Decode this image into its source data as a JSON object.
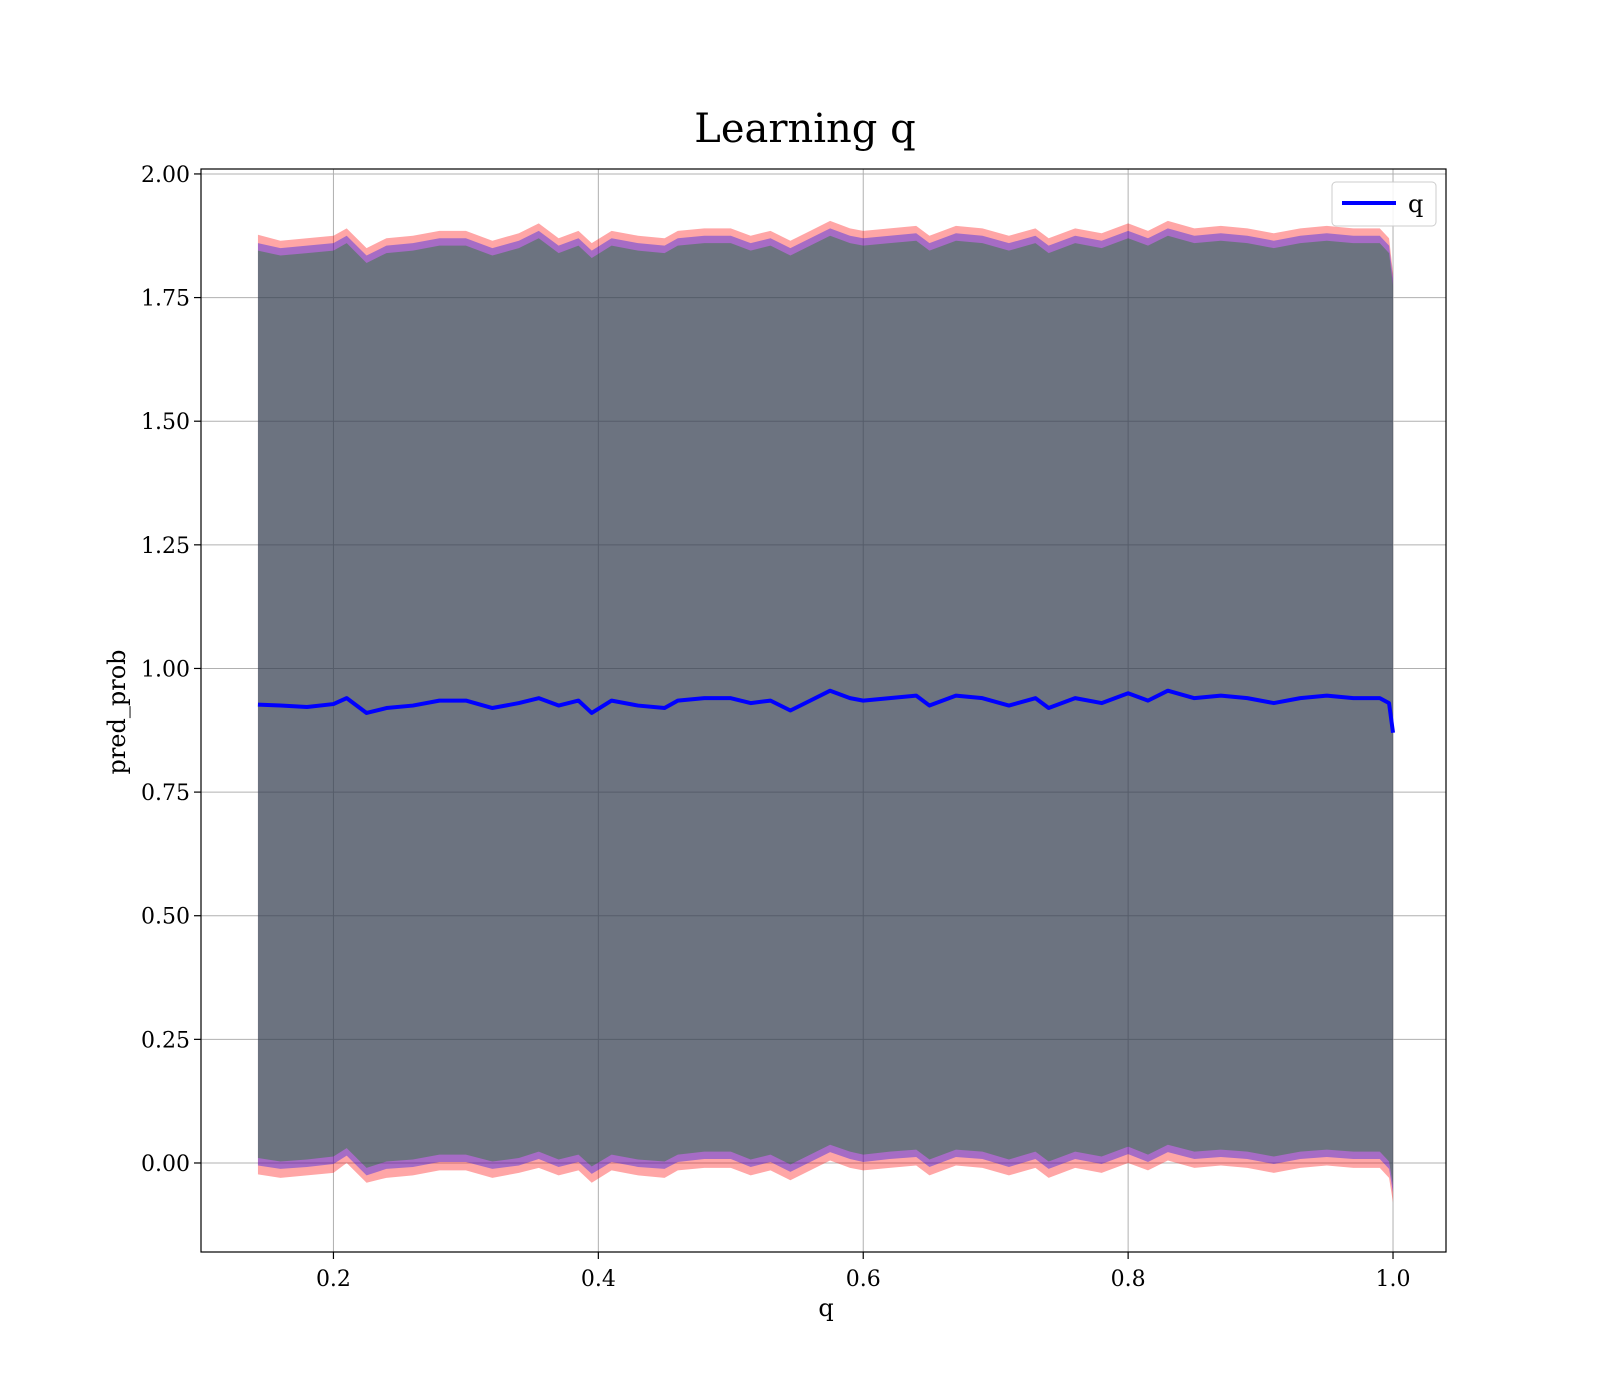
{
  "chart_data": {
    "type": "line",
    "title": "Learning q",
    "xlabel": "q",
    "ylabel": "pred_prob",
    "xlim": [
      0.1,
      1.04
    ],
    "ylim": [
      -0.18,
      2.01
    ],
    "xticks": [
      0.2,
      0.4,
      0.6,
      0.8,
      1.0
    ],
    "xtick_labels": [
      "0.2",
      "0.4",
      "0.6",
      "0.8",
      "1.0"
    ],
    "yticks": [
      0.0,
      0.25,
      0.5,
      0.75,
      1.0,
      1.25,
      1.5,
      1.75,
      2.0
    ],
    "ytick_labels": [
      "0.00",
      "0.25",
      "0.50",
      "0.75",
      "1.00",
      "1.25",
      "1.50",
      "1.75",
      "2.00"
    ],
    "grid": true,
    "legend": {
      "placement": "top-right",
      "entries": [
        "q"
      ]
    },
    "series": [
      {
        "name": "q",
        "color": "#0000ff",
        "x": [
          0.143,
          0.16,
          0.18,
          0.2,
          0.21,
          0.225,
          0.24,
          0.26,
          0.28,
          0.3,
          0.32,
          0.34,
          0.355,
          0.37,
          0.385,
          0.395,
          0.41,
          0.43,
          0.45,
          0.46,
          0.48,
          0.5,
          0.515,
          0.53,
          0.545,
          0.56,
          0.575,
          0.59,
          0.6,
          0.62,
          0.64,
          0.65,
          0.67,
          0.69,
          0.71,
          0.73,
          0.74,
          0.76,
          0.78,
          0.8,
          0.815,
          0.83,
          0.85,
          0.87,
          0.89,
          0.91,
          0.93,
          0.95,
          0.97,
          0.99,
          0.997,
          1.0
        ],
        "y": [
          0.927,
          0.925,
          0.922,
          0.928,
          0.94,
          0.91,
          0.92,
          0.925,
          0.935,
          0.935,
          0.92,
          0.93,
          0.94,
          0.925,
          0.935,
          0.91,
          0.935,
          0.925,
          0.92,
          0.935,
          0.94,
          0.94,
          0.93,
          0.935,
          0.915,
          0.935,
          0.955,
          0.94,
          0.935,
          0.94,
          0.945,
          0.925,
          0.945,
          0.94,
          0.925,
          0.94,
          0.92,
          0.94,
          0.93,
          0.95,
          0.935,
          0.955,
          0.94,
          0.945,
          0.94,
          0.93,
          0.94,
          0.945,
          0.94,
          0.94,
          0.93,
          0.87
        ]
      }
    ],
    "bands": [
      {
        "color": "#ff0000",
        "opacity": 0.35,
        "x": [
          0.143,
          0.16,
          0.18,
          0.2,
          0.21,
          0.225,
          0.24,
          0.26,
          0.28,
          0.3,
          0.32,
          0.34,
          0.355,
          0.37,
          0.385,
          0.395,
          0.41,
          0.43,
          0.45,
          0.46,
          0.48,
          0.5,
          0.515,
          0.53,
          0.545,
          0.56,
          0.575,
          0.59,
          0.6,
          0.62,
          0.64,
          0.65,
          0.67,
          0.69,
          0.71,
          0.73,
          0.74,
          0.76,
          0.78,
          0.8,
          0.815,
          0.83,
          0.85,
          0.87,
          0.89,
          0.91,
          0.93,
          0.95,
          0.97,
          0.99,
          0.997,
          1.0
        ],
        "upper": [
          1.877,
          1.865,
          1.87,
          1.875,
          1.89,
          1.85,
          1.87,
          1.875,
          1.885,
          1.885,
          1.865,
          1.88,
          1.9,
          1.87,
          1.885,
          1.86,
          1.885,
          1.875,
          1.87,
          1.885,
          1.89,
          1.89,
          1.875,
          1.885,
          1.865,
          1.885,
          1.905,
          1.89,
          1.885,
          1.89,
          1.895,
          1.875,
          1.895,
          1.89,
          1.875,
          1.89,
          1.87,
          1.89,
          1.88,
          1.9,
          1.885,
          1.905,
          1.89,
          1.895,
          1.89,
          1.88,
          1.89,
          1.895,
          1.89,
          1.89,
          1.87,
          1.8
        ],
        "lower": [
          -0.023,
          -0.03,
          -0.025,
          -0.02,
          0.0,
          -0.04,
          -0.03,
          -0.025,
          -0.015,
          -0.015,
          -0.03,
          -0.02,
          -0.01,
          -0.025,
          -0.015,
          -0.04,
          -0.015,
          -0.025,
          -0.03,
          -0.015,
          -0.01,
          -0.01,
          -0.025,
          -0.015,
          -0.035,
          -0.015,
          0.005,
          -0.01,
          -0.015,
          -0.01,
          -0.005,
          -0.025,
          -0.005,
          -0.01,
          -0.025,
          -0.01,
          -0.03,
          -0.01,
          -0.02,
          0.0,
          -0.015,
          0.005,
          -0.01,
          -0.005,
          -0.01,
          -0.02,
          -0.01,
          -0.005,
          -0.01,
          -0.01,
          -0.03,
          -0.08
        ]
      },
      {
        "color": "#0000ff",
        "opacity": 0.35,
        "x": [
          0.143,
          0.16,
          0.18,
          0.2,
          0.21,
          0.225,
          0.24,
          0.26,
          0.28,
          0.3,
          0.32,
          0.34,
          0.355,
          0.37,
          0.385,
          0.395,
          0.41,
          0.43,
          0.45,
          0.46,
          0.48,
          0.5,
          0.515,
          0.53,
          0.545,
          0.56,
          0.575,
          0.59,
          0.6,
          0.62,
          0.64,
          0.65,
          0.67,
          0.69,
          0.71,
          0.73,
          0.74,
          0.76,
          0.78,
          0.8,
          0.815,
          0.83,
          0.85,
          0.87,
          0.89,
          0.91,
          0.93,
          0.95,
          0.97,
          0.99,
          0.997,
          1.0
        ],
        "upper": [
          1.86,
          1.85,
          1.855,
          1.86,
          1.875,
          1.835,
          1.855,
          1.86,
          1.87,
          1.87,
          1.85,
          1.865,
          1.885,
          1.855,
          1.87,
          1.845,
          1.87,
          1.86,
          1.855,
          1.87,
          1.875,
          1.875,
          1.86,
          1.87,
          1.85,
          1.87,
          1.89,
          1.875,
          1.87,
          1.875,
          1.88,
          1.86,
          1.88,
          1.875,
          1.86,
          1.875,
          1.855,
          1.875,
          1.865,
          1.885,
          1.87,
          1.89,
          1.875,
          1.88,
          1.875,
          1.865,
          1.875,
          1.88,
          1.875,
          1.875,
          1.855,
          1.79
        ],
        "lower": [
          -0.005,
          -0.012,
          -0.008,
          -0.002,
          0.015,
          -0.025,
          -0.012,
          -0.008,
          0.002,
          0.002,
          -0.012,
          -0.005,
          0.008,
          -0.008,
          0.002,
          -0.022,
          0.002,
          -0.008,
          -0.012,
          0.002,
          0.008,
          0.008,
          -0.008,
          0.002,
          -0.018,
          0.002,
          0.022,
          0.008,
          0.002,
          0.008,
          0.012,
          -0.008,
          0.012,
          0.008,
          -0.008,
          0.008,
          -0.012,
          0.008,
          -0.002,
          0.018,
          0.002,
          0.022,
          0.008,
          0.012,
          0.008,
          -0.002,
          0.008,
          0.012,
          0.008,
          0.008,
          -0.012,
          -0.06
        ]
      },
      {
        "color": "#008000",
        "opacity": 0.35,
        "x": [
          0.143,
          0.16,
          0.18,
          0.2,
          0.21,
          0.225,
          0.24,
          0.26,
          0.28,
          0.3,
          0.32,
          0.34,
          0.355,
          0.37,
          0.385,
          0.395,
          0.41,
          0.43,
          0.45,
          0.46,
          0.48,
          0.5,
          0.515,
          0.53,
          0.545,
          0.56,
          0.575,
          0.59,
          0.6,
          0.62,
          0.64,
          0.65,
          0.67,
          0.69,
          0.71,
          0.73,
          0.74,
          0.76,
          0.78,
          0.8,
          0.815,
          0.83,
          0.85,
          0.87,
          0.89,
          0.91,
          0.93,
          0.95,
          0.97,
          0.99,
          0.997,
          1.0
        ],
        "upper": [
          1.845,
          1.835,
          1.84,
          1.845,
          1.86,
          1.82,
          1.84,
          1.845,
          1.855,
          1.855,
          1.835,
          1.85,
          1.87,
          1.84,
          1.855,
          1.83,
          1.855,
          1.845,
          1.84,
          1.855,
          1.86,
          1.86,
          1.845,
          1.855,
          1.835,
          1.855,
          1.875,
          1.86,
          1.855,
          1.86,
          1.865,
          1.845,
          1.865,
          1.86,
          1.845,
          1.86,
          1.84,
          1.86,
          1.85,
          1.87,
          1.855,
          1.875,
          1.86,
          1.865,
          1.86,
          1.85,
          1.86,
          1.865,
          1.86,
          1.86,
          1.84,
          1.775
        ],
        "lower": [
          0.01,
          0.003,
          0.007,
          0.013,
          0.03,
          -0.01,
          0.003,
          0.007,
          0.017,
          0.017,
          0.003,
          0.01,
          0.023,
          0.007,
          0.017,
          -0.007,
          0.017,
          0.007,
          0.003,
          0.017,
          0.023,
          0.023,
          0.007,
          0.017,
          -0.003,
          0.017,
          0.037,
          0.023,
          0.017,
          0.023,
          0.027,
          0.007,
          0.027,
          0.023,
          0.007,
          0.023,
          0.003,
          0.023,
          0.013,
          0.033,
          0.017,
          0.037,
          0.023,
          0.027,
          0.023,
          0.013,
          0.023,
          0.027,
          0.023,
          0.023,
          0.003,
          -0.045
        ]
      }
    ]
  }
}
